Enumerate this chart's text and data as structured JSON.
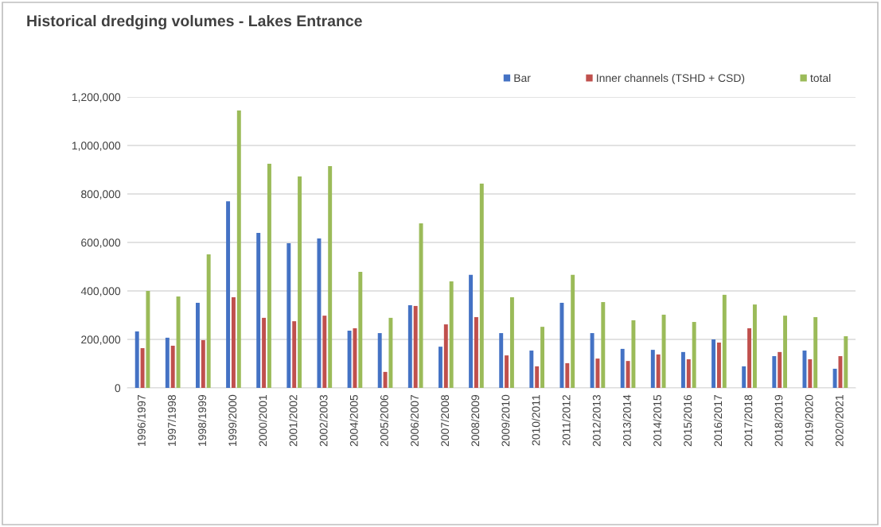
{
  "chart_data": {
    "type": "bar",
    "title": "Historical dredging volumes - Lakes Entrance",
    "categories": [
      "1996/1997",
      "1997/1998",
      "1998/1999",
      "1999/2000",
      "2000/2001",
      "2001/2002",
      "2002/2003",
      "2004/2005",
      "2005/2006",
      "2006/2007",
      "2007/2008",
      "2008/2009",
      "2009/2010",
      "2010/2011",
      "2011/2012",
      "2012/2013",
      "2013/2014",
      "2014/2015",
      "2015/2016",
      "2016/2017",
      "2017/2018",
      "2018/2019",
      "2019/2020",
      "2020/2021"
    ],
    "series": [
      {
        "name": "Bar",
        "color": "#4472c4",
        "values": [
          233000,
          207000,
          351000,
          770000,
          639000,
          597000,
          616000,
          236000,
          226000,
          341000,
          170000,
          466000,
          226000,
          154000,
          351000,
          226000,
          161000,
          157000,
          148000,
          200000,
          89000,
          131000,
          154000,
          79000
        ]
      },
      {
        "name": "Inner channels (TSHD + CSD)",
        "color": "#c0504d",
        "values": [
          164000,
          174000,
          197000,
          374000,
          289000,
          275000,
          298000,
          246000,
          66000,
          338000,
          262000,
          292000,
          134000,
          89000,
          102000,
          121000,
          111000,
          138000,
          118000,
          187000,
          246000,
          148000,
          118000,
          131000
        ]
      },
      {
        "name": "total",
        "color": "#9bbb59",
        "values": [
          400000,
          377000,
          551000,
          1144000,
          925000,
          872000,
          915000,
          479000,
          289000,
          679000,
          439000,
          843000,
          374000,
          252000,
          466000,
          354000,
          279000,
          302000,
          272000,
          384000,
          344000,
          298000,
          292000,
          213000
        ]
      }
    ],
    "ylim": [
      0,
      1200000
    ],
    "yticks": [
      {
        "value": 0,
        "label": "0"
      },
      {
        "value": 200000,
        "label": "200,000"
      },
      {
        "value": 400000,
        "label": "400,000"
      },
      {
        "value": 600000,
        "label": "600,000"
      },
      {
        "value": 800000,
        "label": "800,000"
      },
      {
        "value": 1000000,
        "label": "1,000,000"
      },
      {
        "value": 1200000,
        "label": "1,200,000"
      }
    ],
    "grid": "y",
    "legend": "top right"
  }
}
